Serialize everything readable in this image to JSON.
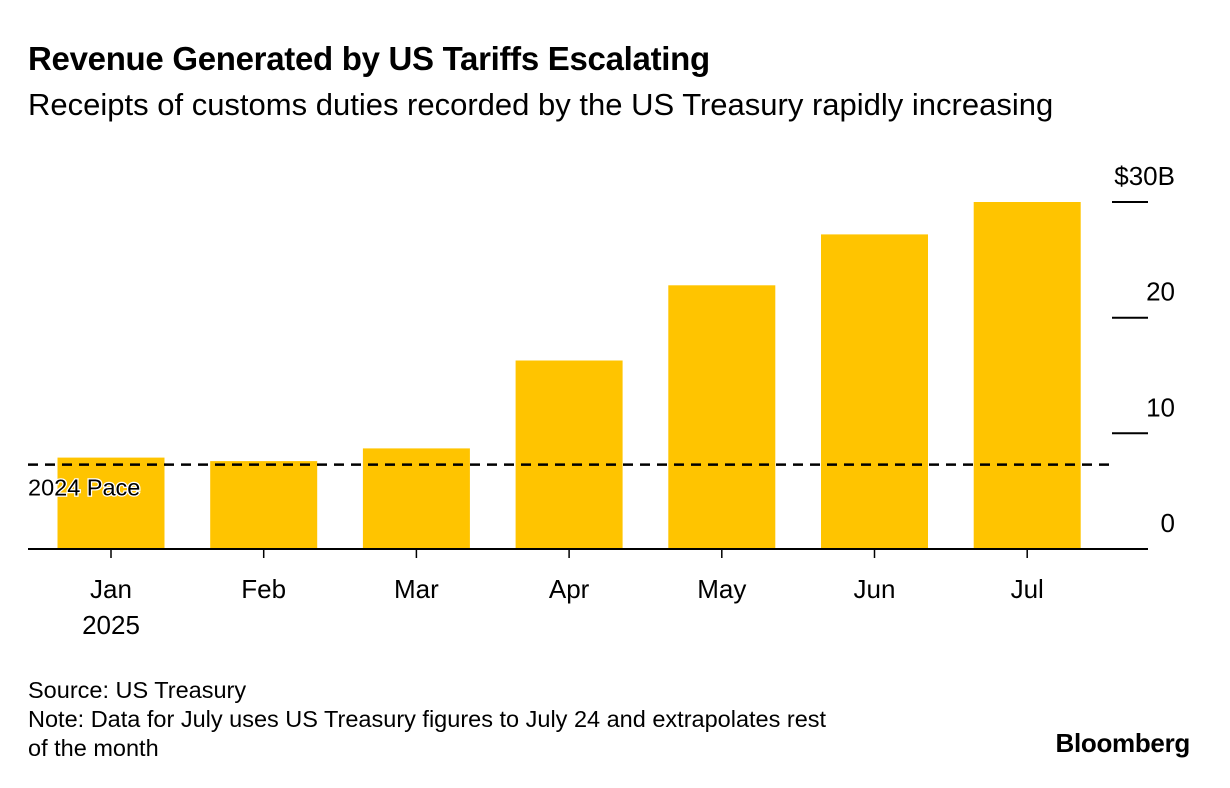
{
  "header": {
    "title": "Revenue Generated by US Tariffs Escalating",
    "subtitle": "Receipts of customs duties recorded by the US Treasury rapidly increasing"
  },
  "chart_data": {
    "type": "bar",
    "categories": [
      "Jan",
      "Feb",
      "Mar",
      "Apr",
      "May",
      "Jun",
      "Jul"
    ],
    "category_sublabels": [
      "2025",
      "",
      "",
      "",
      "",
      "",
      ""
    ],
    "values": [
      7.9,
      7.6,
      8.7,
      16.3,
      22.8,
      27.2,
      30.0
    ],
    "ylim": [
      0,
      30
    ],
    "y_ticks": [
      {
        "value": 0,
        "label": "0"
      },
      {
        "value": 10,
        "label": "10"
      },
      {
        "value": 20,
        "label": "20"
      },
      {
        "value": 30,
        "label": "$30B"
      }
    ],
    "reference_line": {
      "label": "2024 Pace",
      "value": 7.3,
      "style": "dashed"
    },
    "bar_color": "#FFC400",
    "axis_side": "right",
    "grid": false,
    "legend": "none"
  },
  "footer": {
    "source": "Source: US Treasury",
    "note_line1": "Note: Data for July uses US Treasury figures to July 24 and extrapolates rest",
    "note_line2": "of the month",
    "brand": "Bloomberg"
  }
}
